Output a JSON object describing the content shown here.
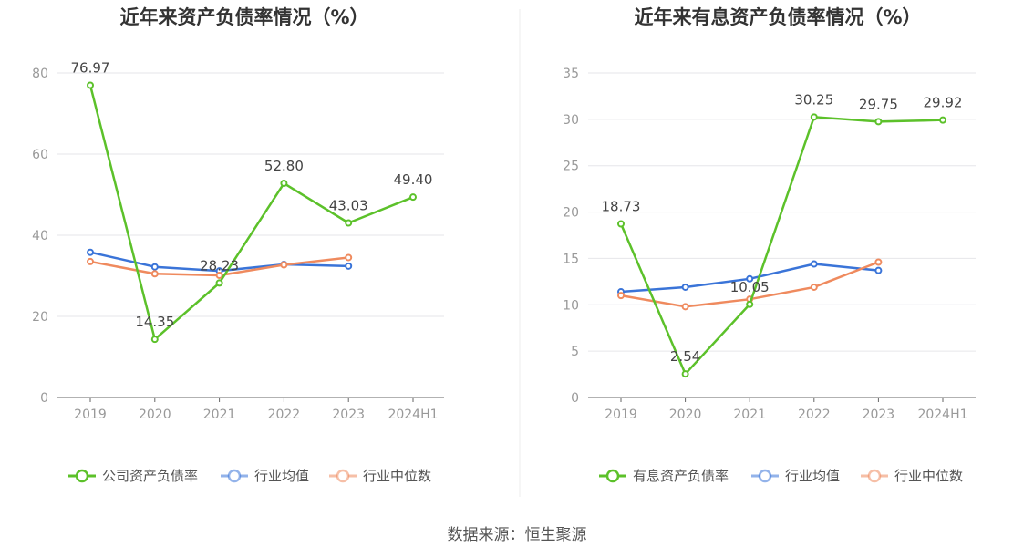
{
  "source": "数据来源：恒生聚源",
  "colors": {
    "primary": "#5cc12a",
    "avg": "#3a74d8",
    "median": "#ef8a5e"
  },
  "chart_data": [
    {
      "type": "line",
      "title": "近年来资产负债率情况（%）",
      "categories": [
        "2019",
        "2020",
        "2021",
        "2022",
        "2023",
        "2024H1"
      ],
      "ylim": [
        0,
        80
      ],
      "yticks": [
        0,
        20,
        40,
        60,
        80
      ],
      "grid": true,
      "legend": "bottom",
      "series": [
        {
          "name": "公司资产负债率",
          "values": [
            76.97,
            14.35,
            28.23,
            52.8,
            43.03,
            49.4
          ],
          "labels": [
            "76.97",
            "14.35",
            "28.23",
            "52.80",
            "43.03",
            "49.40"
          ]
        },
        {
          "name": "行业均值",
          "values": [
            35.8,
            32.2,
            31.2,
            32.8,
            32.4,
            null
          ]
        },
        {
          "name": "行业中位数",
          "values": [
            33.5,
            30.5,
            30.1,
            32.7,
            34.5,
            null
          ]
        }
      ]
    },
    {
      "type": "line",
      "title": "近年来有息资产负债率情况（%）",
      "categories": [
        "2019",
        "2020",
        "2021",
        "2022",
        "2023",
        "2024H1"
      ],
      "ylim": [
        0,
        35
      ],
      "yticks": [
        0,
        5,
        10,
        15,
        20,
        25,
        30,
        35
      ],
      "grid": true,
      "legend": "bottom",
      "series": [
        {
          "name": "有息资产负债率",
          "values": [
            18.73,
            2.54,
            10.05,
            30.25,
            29.75,
            29.92
          ],
          "labels": [
            "18.73",
            "2.54",
            "10.05",
            "30.25",
            "29.75",
            "29.92"
          ]
        },
        {
          "name": "行业均值",
          "values": [
            11.4,
            11.9,
            12.8,
            14.4,
            13.7,
            null
          ]
        },
        {
          "name": "行业中位数",
          "values": [
            11.0,
            9.8,
            10.6,
            11.9,
            14.6,
            null
          ]
        }
      ]
    }
  ]
}
